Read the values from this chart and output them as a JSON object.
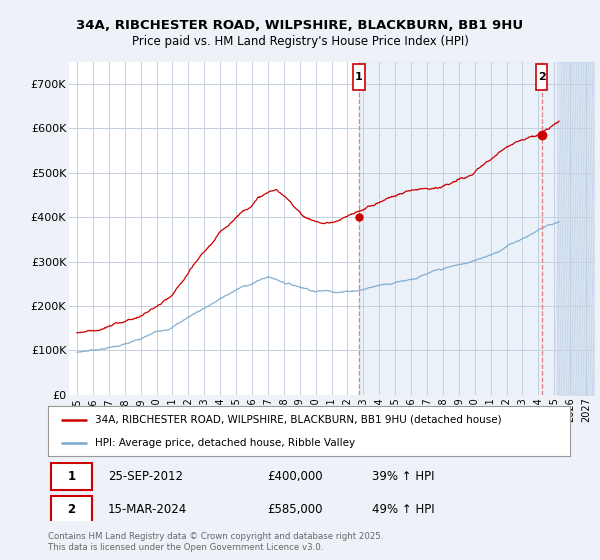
{
  "title_line1": "34A, RIBCHESTER ROAD, WILPSHIRE, BLACKBURN, BB1 9HU",
  "title_line2": "Price paid vs. HM Land Registry's House Price Index (HPI)",
  "ylim": [
    0,
    750000
  ],
  "yticks": [
    0,
    100000,
    200000,
    300000,
    400000,
    500000,
    600000,
    700000
  ],
  "ytick_labels": [
    "£0",
    "£100K",
    "£200K",
    "£300K",
    "£400K",
    "£500K",
    "£600K",
    "£700K"
  ],
  "xlim_start": 1994.5,
  "xlim_end": 2027.5,
  "xtick_years": [
    1995,
    1996,
    1997,
    1998,
    1999,
    2000,
    2001,
    2002,
    2003,
    2004,
    2005,
    2006,
    2007,
    2008,
    2009,
    2010,
    2011,
    2012,
    2013,
    2014,
    2015,
    2016,
    2017,
    2018,
    2019,
    2020,
    2021,
    2022,
    2023,
    2024,
    2025,
    2026,
    2027
  ],
  "bg_color": "#eef2f8",
  "plot_bg_color": "#ffffff",
  "grid_color": "#c5d0e0",
  "red_color": "#cc0000",
  "blue_color": "#7aa8cc",
  "shade_color": "#dde8f5",
  "marker1_x": 2012.73,
  "marker1_y": 400000,
  "marker2_x": 2024.21,
  "marker2_y": 585000,
  "marker1_label": "1",
  "marker2_label": "2",
  "legend_line1": "34A, RIBCHESTER ROAD, WILPSHIRE, BLACKBURN, BB1 9HU (detached house)",
  "legend_line2": "HPI: Average price, detached house, Ribble Valley",
  "table_row1": [
    "1",
    "25-SEP-2012",
    "£400,000",
    "39% ↑ HPI"
  ],
  "table_row2": [
    "2",
    "15-MAR-2024",
    "£585,000",
    "49% ↑ HPI"
  ],
  "footnote": "Contains HM Land Registry data © Crown copyright and database right 2025.\nThis data is licensed under the Open Government Licence v3.0."
}
